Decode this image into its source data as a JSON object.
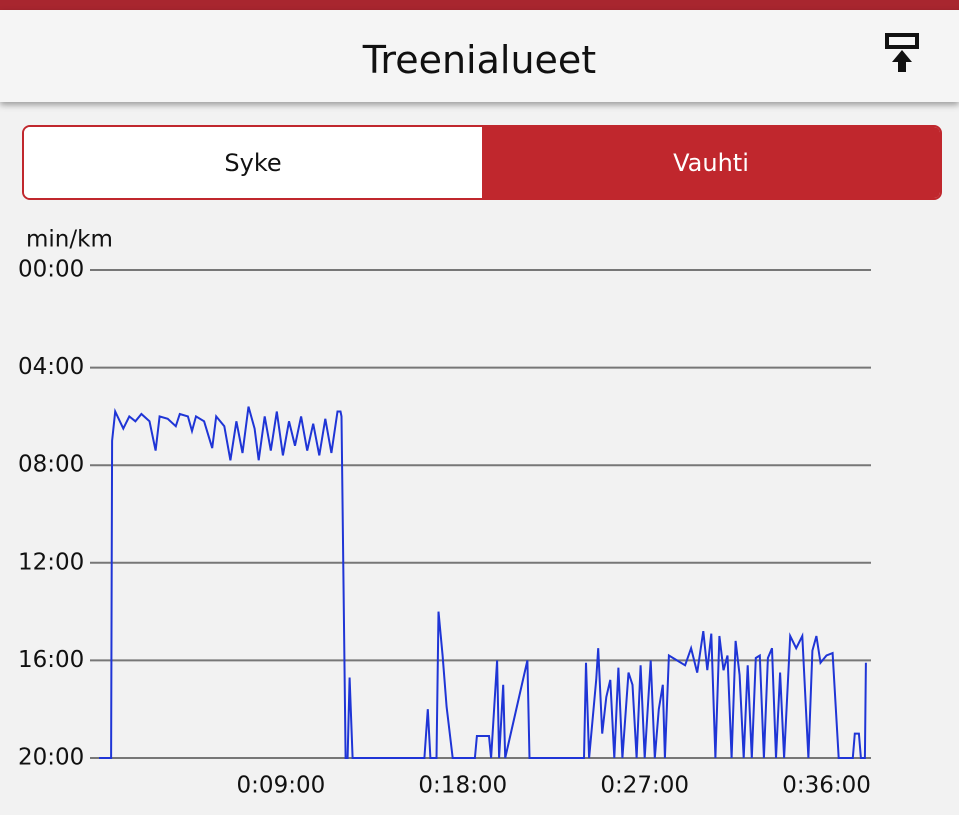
{
  "header": {
    "title": "Treenialueet"
  },
  "tabs": [
    "Syke",
    "Vauhti"
  ],
  "chart_data": {
    "type": "line",
    "y_label": "min/km",
    "ylim": [
      20,
      0
    ],
    "yticks": [
      {
        "value": 0,
        "label": "00:00"
      },
      {
        "value": 4,
        "label": "04:00"
      },
      {
        "value": 8,
        "label": "08:00"
      },
      {
        "value": 12,
        "label": "12:00"
      },
      {
        "value": 16,
        "label": "16:00"
      },
      {
        "value": 20,
        "label": "20:00"
      }
    ],
    "xlim": [
      0,
      38.2
    ],
    "xticks": [
      {
        "value": 9,
        "label": "0:09:00"
      },
      {
        "value": 18,
        "label": "0:18:00"
      },
      {
        "value": 27,
        "label": "0:27:00"
      },
      {
        "value": 36,
        "label": "0:36:00"
      }
    ],
    "grid": true,
    "x": [
      0,
      0.6,
      0.65,
      0.8,
      1.2,
      1.5,
      1.8,
      2.1,
      2.5,
      2.8,
      3.0,
      3.4,
      3.8,
      4.0,
      4.4,
      4.6,
      4.8,
      5.2,
      5.6,
      5.8,
      6.2,
      6.5,
      6.8,
      7.1,
      7.4,
      7.7,
      7.9,
      8.2,
      8.5,
      8.8,
      9.1,
      9.4,
      9.7,
      10.0,
      10.3,
      10.6,
      10.9,
      11.2,
      11.5,
      11.8,
      11.95,
      12.0,
      12.2,
      12.3,
      12.4,
      12.55,
      16.1,
      16.27,
      16.4,
      16.7,
      16.8,
      17.0,
      17.2,
      17.5,
      18.6,
      18.7,
      19.3,
      19.4,
      19.7,
      19.8,
      20.0,
      20.1,
      21.2,
      21.3,
      24.0,
      24.1,
      24.25,
      24.6,
      24.7,
      24.9,
      25.1,
      25.3,
      25.5,
      25.7,
      25.9,
      26.2,
      26.4,
      26.6,
      26.8,
      27.0,
      27.3,
      27.5,
      27.7,
      27.9,
      28.0,
      28.2,
      28.6,
      29.0,
      29.3,
      29.6,
      29.9,
      30.1,
      30.3,
      30.5,
      30.7,
      30.9,
      31.1,
      31.3,
      31.5,
      31.7,
      31.9,
      32.1,
      32.3,
      32.5,
      32.7,
      32.9,
      33.1,
      33.3,
      33.5,
      33.7,
      33.9,
      34.2,
      34.5,
      34.8,
      35.1,
      35.3,
      35.5,
      35.7,
      36.0,
      36.3,
      36.6,
      37.3,
      37.4,
      37.6,
      37.7,
      37.9,
      37.95
    ],
    "series": [
      {
        "color": "#1f35d6",
        "values": [
          20,
          20,
          7.0,
          5.8,
          6.5,
          6.0,
          6.2,
          5.9,
          6.2,
          7.4,
          6.0,
          6.1,
          6.4,
          5.9,
          6.0,
          6.6,
          6.0,
          6.2,
          7.3,
          6.0,
          6.4,
          7.8,
          6.2,
          7.5,
          5.6,
          6.5,
          7.8,
          6.0,
          7.4,
          5.8,
          7.6,
          6.2,
          7.2,
          6.0,
          7.4,
          6.3,
          7.6,
          6.1,
          7.5,
          5.8,
          5.8,
          6.0,
          20,
          20,
          16.7,
          20,
          20,
          18.0,
          20,
          20,
          14.0,
          15.8,
          17.9,
          20,
          20,
          19.1,
          19.1,
          20,
          16.0,
          20,
          17.0,
          20,
          16.0,
          20,
          20,
          16.1,
          20,
          16.8,
          15.5,
          19.0,
          17.5,
          16.8,
          20,
          16.3,
          20,
          16.5,
          17.0,
          20,
          16.2,
          20,
          16.0,
          20,
          18.0,
          17.0,
          20,
          15.8,
          16.0,
          16.2,
          15.5,
          16.5,
          14.8,
          16.4,
          14.9,
          20,
          15.0,
          16.4,
          15.8,
          20,
          15.2,
          16.6,
          20,
          16.2,
          20,
          15.9,
          15.8,
          20,
          15.9,
          15.5,
          20,
          16.5,
          20,
          15.0,
          15.5,
          15.0,
          20,
          15.6,
          15.0,
          16.1,
          15.8,
          15.7,
          20,
          20,
          19.0,
          19.0,
          20,
          20,
          16.1
        ]
      }
    ]
  }
}
